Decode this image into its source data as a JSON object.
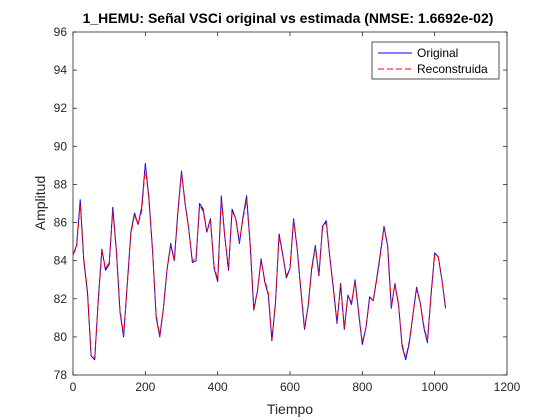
{
  "chart_data": {
    "type": "line",
    "title": "1_HEMU: Señal VSCi original vs estimada (NMSE: 1.6692e-02)",
    "xlabel": "Tiempo",
    "ylabel": "Amplitud",
    "xlim": [
      0,
      1200
    ],
    "ylim": [
      78,
      96
    ],
    "xticks": [
      0,
      200,
      400,
      600,
      800,
      1000,
      1200
    ],
    "yticks": [
      78,
      80,
      82,
      84,
      86,
      88,
      90,
      92,
      94,
      96
    ],
    "xtick_labels": [
      "0",
      "200",
      "400",
      "600",
      "800",
      "1000",
      "1200"
    ],
    "ytick_labels": [
      "78",
      "80",
      "82",
      "84",
      "86",
      "88",
      "90",
      "92",
      "94",
      "96"
    ],
    "grid": false,
    "legend_position": "top-right",
    "x": [
      0,
      10,
      20,
      30,
      40,
      50,
      60,
      70,
      80,
      90,
      100,
      110,
      120,
      130,
      140,
      150,
      160,
      170,
      180,
      190,
      200,
      210,
      220,
      230,
      240,
      250,
      260,
      270,
      280,
      290,
      300,
      310,
      320,
      330,
      340,
      350,
      360,
      370,
      380,
      390,
      400,
      410,
      420,
      430,
      440,
      450,
      460,
      470,
      480,
      490,
      500,
      510,
      520,
      530,
      540,
      550,
      560,
      570,
      580,
      590,
      600,
      610,
      620,
      630,
      640,
      650,
      660,
      670,
      680,
      690,
      700,
      710,
      720,
      730,
      740,
      750,
      760,
      770,
      780,
      790,
      800,
      810,
      820,
      830,
      840,
      850,
      860,
      870,
      880,
      890,
      900,
      910,
      920,
      930,
      940,
      950,
      960,
      970,
      980,
      990,
      1000,
      1010,
      1020,
      1030
    ],
    "series": [
      {
        "name": "Original",
        "color": "#0000ff",
        "dash": "solid",
        "values": [
          84.3,
          84.8,
          87.2,
          84.0,
          82.3,
          79.0,
          78.8,
          82.0,
          84.6,
          83.5,
          83.8,
          86.8,
          84.5,
          81.3,
          80.0,
          82.8,
          85.5,
          86.5,
          85.9,
          86.8,
          89.1,
          87.3,
          84.5,
          81.0,
          80.0,
          81.5,
          83.5,
          84.9,
          84.0,
          86.6,
          88.7,
          87.0,
          85.7,
          83.9,
          84.0,
          87.0,
          86.7,
          85.5,
          86.2,
          83.6,
          82.9,
          87.4,
          85.2,
          83.5,
          86.7,
          86.2,
          84.9,
          86.3,
          87.4,
          84.8,
          81.4,
          82.4,
          84.1,
          82.9,
          82.2,
          79.8,
          81.8,
          85.4,
          84.3,
          83.1,
          83.6,
          86.2,
          84.6,
          82.4,
          80.4,
          81.6,
          83.6,
          84.8,
          83.2,
          85.8,
          86.1,
          84.2,
          82.5,
          80.7,
          82.8,
          80.4,
          82.2,
          81.7,
          83.0,
          81.2,
          79.6,
          80.5,
          82.1,
          81.9,
          83.1,
          84.4,
          85.8,
          84.8,
          81.5,
          82.8,
          81.7,
          79.5,
          78.8,
          79.7,
          81.2,
          82.6,
          81.8,
          80.5,
          79.7,
          82.2,
          84.4,
          84.2,
          83.0,
          81.5
        ]
      },
      {
        "name": "Reconstruida",
        "color": "#ff0000",
        "dash": "dashed",
        "values": [
          84.3,
          84.7,
          87.0,
          84.1,
          82.4,
          79.1,
          78.9,
          81.9,
          84.5,
          83.6,
          83.9,
          86.6,
          84.5,
          81.4,
          80.1,
          82.7,
          85.4,
          86.4,
          85.9,
          86.6,
          88.9,
          87.2,
          84.5,
          81.1,
          80.1,
          81.5,
          83.5,
          84.8,
          84.0,
          86.5,
          88.6,
          87.0,
          85.7,
          84.0,
          84.1,
          86.9,
          86.6,
          85.5,
          86.1,
          83.7,
          83.0,
          87.2,
          85.2,
          83.6,
          86.6,
          86.2,
          85.0,
          86.2,
          87.2,
          84.9,
          81.5,
          82.4,
          84.0,
          83.0,
          82.3,
          79.9,
          81.8,
          85.3,
          84.3,
          83.2,
          83.6,
          86.1,
          84.6,
          82.5,
          80.5,
          81.6,
          83.5,
          84.7,
          83.3,
          85.7,
          86.0,
          84.2,
          82.6,
          80.8,
          82.7,
          80.5,
          82.2,
          81.8,
          82.9,
          81.3,
          79.7,
          80.5,
          82.0,
          81.9,
          83.0,
          84.3,
          85.7,
          84.8,
          81.6,
          82.7,
          81.7,
          79.6,
          78.9,
          79.8,
          81.2,
          82.5,
          81.8,
          80.6,
          79.8,
          82.1,
          84.3,
          84.2,
          83.0,
          81.6
        ]
      }
    ]
  }
}
